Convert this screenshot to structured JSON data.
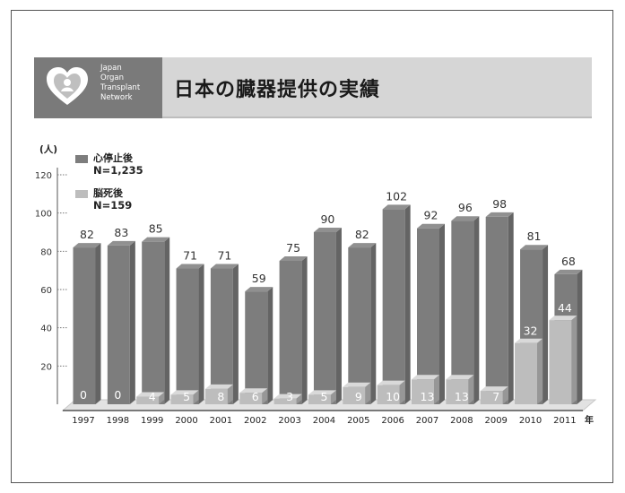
{
  "header": {
    "logo_lines": [
      "Japan",
      "Organ",
      "Transplant",
      "Network"
    ],
    "title": "日本の臓器提供の実績"
  },
  "legend": {
    "items": [
      {
        "label": "心停止後",
        "total": "N=1,235",
        "color": "#7d7d7d"
      },
      {
        "label": "脳死後",
        "total": "N=159",
        "color": "#bdbdbd"
      }
    ]
  },
  "chart_data": {
    "type": "bar",
    "ylabel": "(人)",
    "xunit": "年",
    "ylim": [
      0,
      120
    ],
    "yticks": [
      20,
      40,
      60,
      80,
      100,
      120
    ],
    "categories": [
      "1997",
      "1998",
      "1999",
      "2000",
      "2001",
      "2002",
      "2003",
      "2004",
      "2005",
      "2006",
      "2007",
      "2008",
      "2009",
      "2010",
      "2011"
    ],
    "series": [
      {
        "name": "心停止後",
        "values": [
          82,
          83,
          85,
          71,
          71,
          59,
          75,
          90,
          82,
          102,
          92,
          96,
          98,
          81,
          68
        ],
        "color": "#7d7d7d"
      },
      {
        "name": "脳死後",
        "values": [
          0,
          0,
          4,
          5,
          8,
          6,
          3,
          5,
          9,
          10,
          13,
          13,
          7,
          32,
          44
        ],
        "color": "#bdbdbd"
      }
    ]
  }
}
